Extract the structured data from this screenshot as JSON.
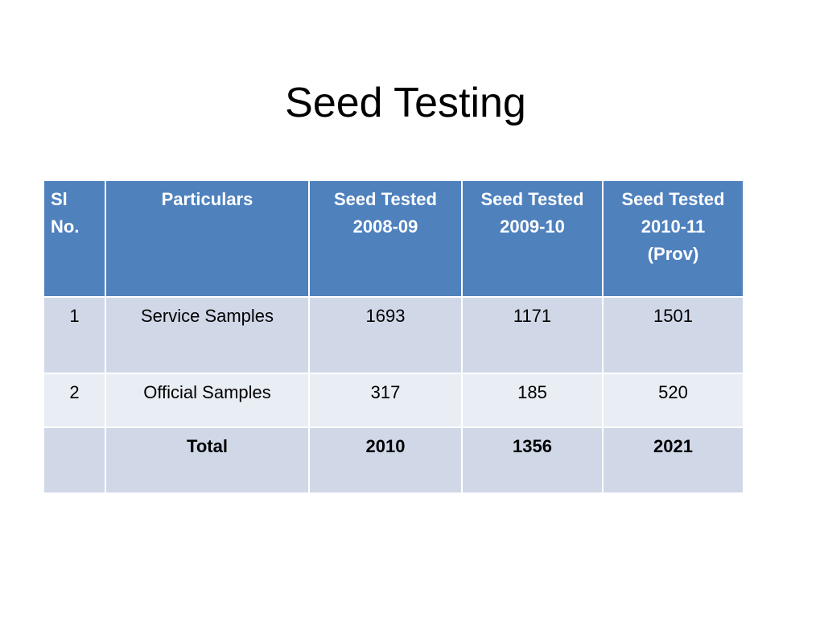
{
  "slide": {
    "title": "Seed Testing"
  },
  "table": {
    "headers": {
      "sl_no_line1": "Sl",
      "sl_no_line2": "No.",
      "particulars": "Particulars",
      "col_2008_line1": "Seed Tested",
      "col_2008_line2": "2008-09",
      "col_2009_line1": "Seed Tested",
      "col_2009_line2": "2009-10",
      "col_2010_line1": "Seed Tested",
      "col_2010_line2": "2010-11",
      "col_2010_line3": "(Prov)"
    },
    "rows": [
      {
        "sl_no": "1",
        "particulars": "Service Samples",
        "y2008_09": "1693",
        "y2009_10": "1171",
        "y2010_11": "1501"
      },
      {
        "sl_no": "2",
        "particulars": "Official Samples",
        "y2008_09": "317",
        "y2009_10": "185",
        "y2010_11": "520"
      }
    ],
    "total": {
      "sl_no": "",
      "particulars": "Total",
      "y2008_09": "2010",
      "y2009_10": "1356",
      "y2010_11": "2021"
    }
  },
  "colors": {
    "header_bg": "#4f81bd",
    "header_text": "#ffffff",
    "row_dark": "#d0d8e8",
    "row_light": "#e9edf4"
  }
}
